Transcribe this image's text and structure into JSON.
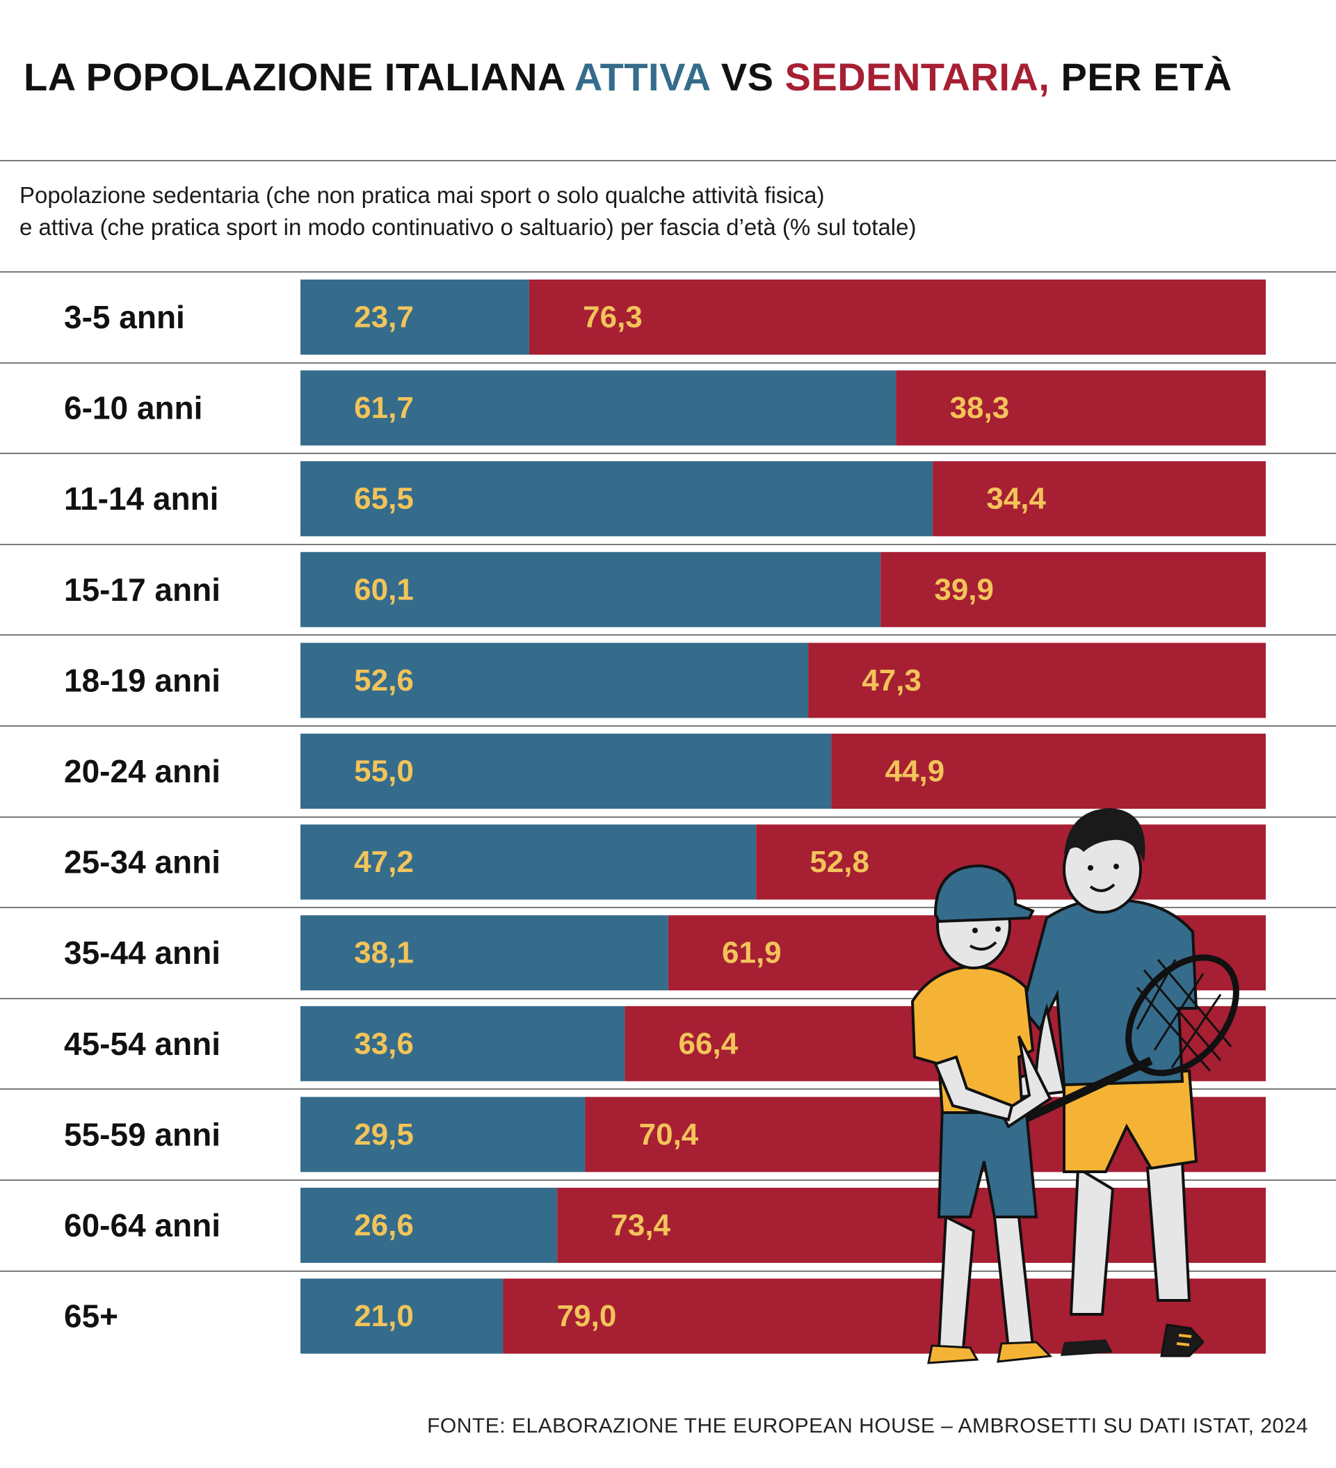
{
  "title": {
    "part1": "LA POPOLAZIONE ITALIANA ",
    "attiva": "ATTIVA",
    "part2": " VS ",
    "sedentaria": "SEDENTARIA,",
    "part3": " PER ETÀ"
  },
  "subtitle": {
    "line1": "Popolazione sedentaria (che non pratica mai sport o solo qualche attività fisica)",
    "line2": "e attiva (che pratica sport in modo continuativo o saltuario) per fascia d’età (% sul totale)"
  },
  "colors": {
    "attiva": "#356c8c",
    "sedentaria": "#a71f33",
    "value_label": "#f2c45a"
  },
  "chart_data": {
    "type": "bar",
    "stacked": true,
    "orientation": "horizontal",
    "categories": [
      "3-5 anni",
      "6-10 anni",
      "11-14 anni",
      "15-17 anni",
      "18-19 anni",
      "20-24 anni",
      "25-34 anni",
      "35-44 anni",
      "45-54 anni",
      "55-59 anni",
      "60-64 anni",
      "65+"
    ],
    "series": [
      {
        "key": "attiva",
        "values": [
          23.7,
          61.7,
          65.5,
          60.1,
          52.6,
          55.0,
          47.2,
          38.1,
          33.6,
          29.5,
          26.6,
          21.0
        ],
        "labels": [
          "23,7",
          "61,7",
          "65,5",
          "60,1",
          "52,6",
          "55,0",
          "47,2",
          "38,1",
          "33,6",
          "29,5",
          "26,6",
          "21,0"
        ]
      },
      {
        "key": "sedentaria",
        "values": [
          76.3,
          38.3,
          34.4,
          39.9,
          47.3,
          44.9,
          52.8,
          61.9,
          66.4,
          70.4,
          73.4,
          79.0
        ],
        "labels": [
          "76,3",
          "38,3",
          "34,4",
          "39,9",
          "47,3",
          "44,9",
          "52,8",
          "61,9",
          "66,4",
          "70,4",
          "73,4",
          "79,0"
        ]
      }
    ],
    "xlim": [
      0,
      100
    ],
    "grid": false,
    "legend": "title"
  },
  "source": "FONTE: ELABORAZIONE THE EUROPEAN HOUSE – AMBROSETTI SU DATI ISTAT, 2024"
}
